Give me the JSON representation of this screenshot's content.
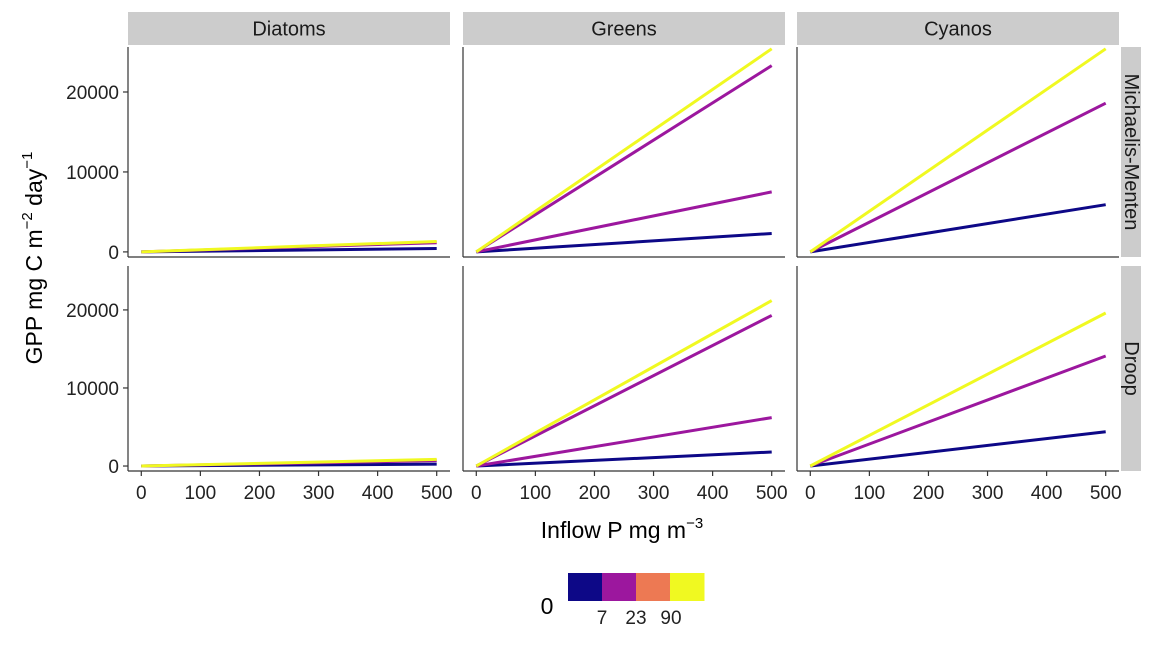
{
  "chart_data": {
    "type": "line",
    "facet_columns": [
      "Diatoms",
      "Greens",
      "Cyanos"
    ],
    "facet_rows": [
      "Michaelis-Menten",
      "Droop"
    ],
    "x_label": {
      "text": "Inflow P mg m",
      "sup": "−3"
    },
    "y_label": {
      "part1": "GPP mg C m",
      "sup1": "−2",
      "part2": " day",
      "sup2": "−1"
    },
    "xlim": [
      0,
      500
    ],
    "ylim": [
      0,
      25500
    ],
    "x_ticks": [
      0,
      100,
      200,
      300,
      400,
      500
    ],
    "y_ticks": [
      0,
      10000,
      20000
    ],
    "grid": false,
    "legend": {
      "position": "bottom",
      "title": "0",
      "colors": [
        "#0d0887",
        "#9c179e",
        "#ed7953",
        "#f0f921"
      ],
      "labels": [
        "7",
        "23",
        "90"
      ]
    },
    "x": [
      0,
      500
    ],
    "panels": [
      {
        "row": "Michaelis-Menten",
        "col": "Diatoms",
        "series": [
          {
            "color": "#0d0887",
            "values": [
              0,
              420
            ]
          },
          {
            "color": "#9c179e",
            "values": [
              0,
              1150
            ]
          },
          {
            "color": "#f0f921",
            "values": [
              0,
              1300
            ]
          }
        ]
      },
      {
        "row": "Michaelis-Menten",
        "col": "Greens",
        "series": [
          {
            "color": "#0d0887",
            "values": [
              0,
              2300
            ]
          },
          {
            "color": "#9c179e",
            "values": [
              0,
              7500
            ]
          },
          {
            "color": "#9c179e",
            "values": [
              0,
              23300
            ]
          },
          {
            "color": "#f0f921",
            "values": [
              0,
              25400
            ]
          }
        ]
      },
      {
        "row": "Michaelis-Menten",
        "col": "Cyanos",
        "series": [
          {
            "color": "#0d0887",
            "values": [
              0,
              5900
            ]
          },
          {
            "color": "#9c179e",
            "values": [
              0,
              18600
            ]
          },
          {
            "color": "#f0f921",
            "values": [
              0,
              25400
            ]
          }
        ]
      },
      {
        "row": "Droop",
        "col": "Diatoms",
        "series": [
          {
            "color": "#0d0887",
            "values": [
              0,
              250
            ]
          },
          {
            "color": "#9c179e",
            "values": [
              0,
              700
            ]
          },
          {
            "color": "#f0f921",
            "values": [
              0,
              850
            ]
          }
        ]
      },
      {
        "row": "Droop",
        "col": "Greens",
        "series": [
          {
            "color": "#0d0887",
            "values": [
              0,
              1800
            ]
          },
          {
            "color": "#9c179e",
            "values": [
              0,
              6200
            ]
          },
          {
            "color": "#9c179e",
            "values": [
              0,
              19300
            ]
          },
          {
            "color": "#f0f921",
            "values": [
              0,
              21200
            ]
          }
        ]
      },
      {
        "row": "Droop",
        "col": "Cyanos",
        "series": [
          {
            "color": "#0d0887",
            "values": [
              0,
              4400
            ]
          },
          {
            "color": "#9c179e",
            "values": [
              0,
              14100
            ]
          },
          {
            "color": "#f0f921",
            "values": [
              0,
              19600
            ]
          }
        ]
      }
    ]
  }
}
